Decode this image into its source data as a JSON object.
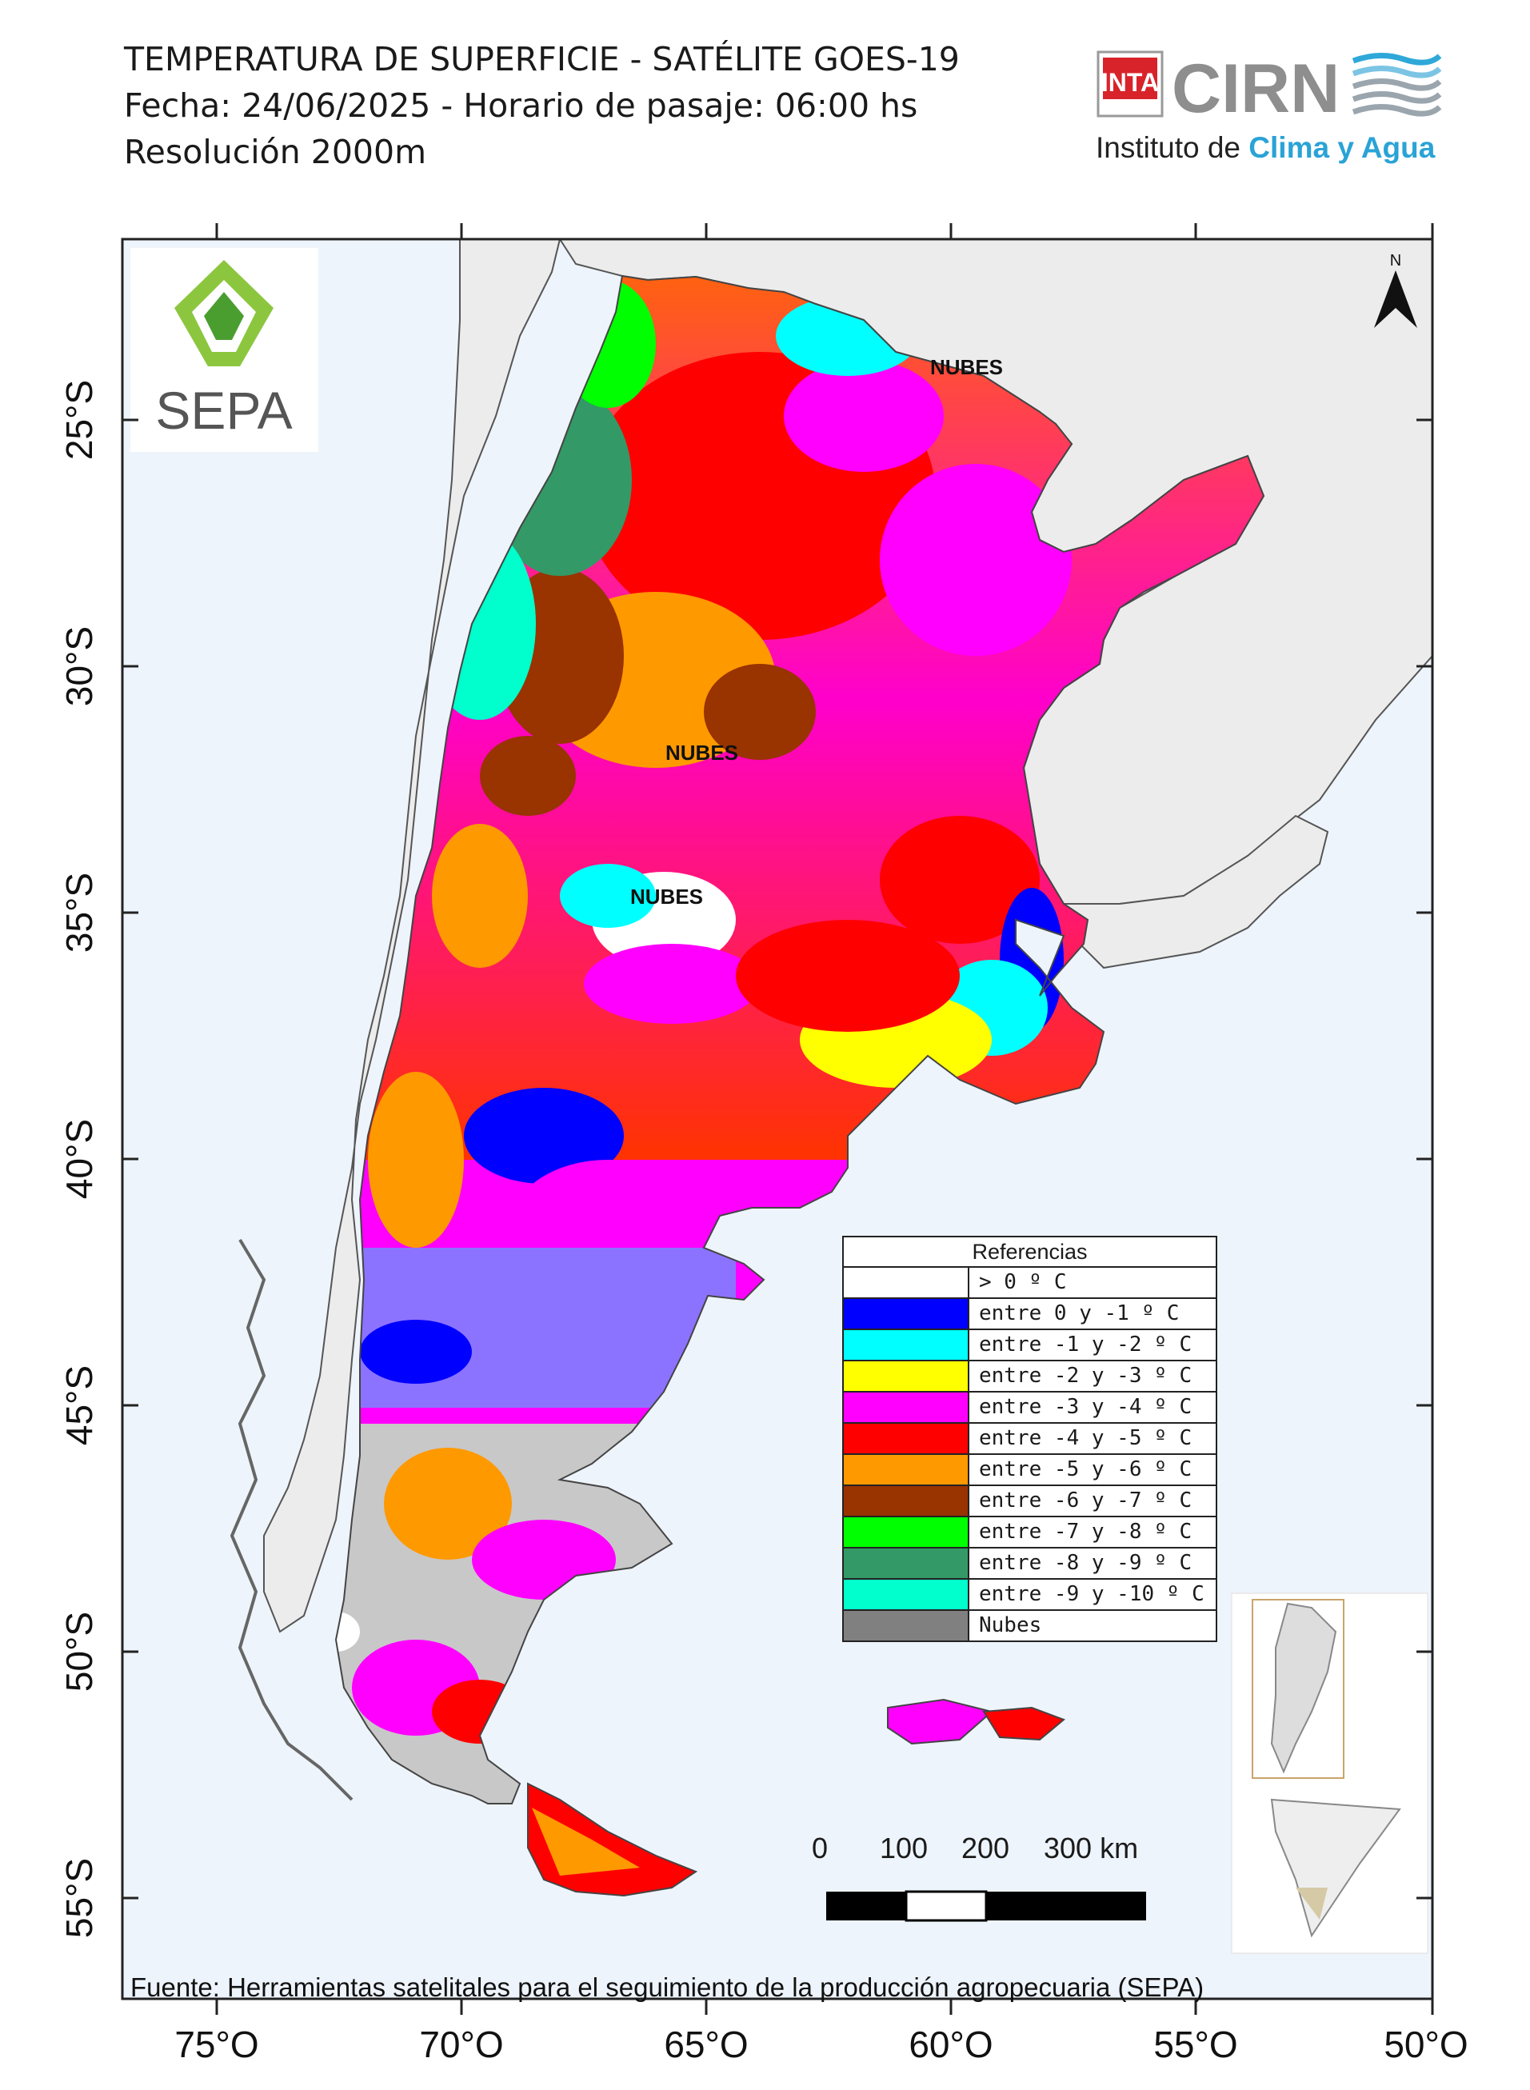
{
  "header": {
    "line1": "TEMPERATURA DE SUPERFICIE - SATÉLITE GOES-19",
    "line2": "Fecha: 24/06/2025 - Horario de pasaje: 06:00 hs",
    "line3": "Resolución 2000m"
  },
  "logos": {
    "inta": "INTA",
    "cirn": "CIRN",
    "instituto_prefix": "Instituto de ",
    "instituto_highlight": "Clima y Agua",
    "sepa": "SEPA"
  },
  "map": {
    "north_label": "N",
    "cloud_labels": [
      "NUBES",
      "NUBES",
      "NUBES"
    ],
    "lat_ticks": [
      "25°S",
      "30°S",
      "35°S",
      "40°S",
      "45°S",
      "50°S",
      "55°S"
    ],
    "lon_ticks": [
      "75°O",
      "70°O",
      "65°O",
      "60°O",
      "55°O",
      "50°O"
    ]
  },
  "legend": {
    "title": "Referencias",
    "items": [
      {
        "label": "> 0 º C",
        "color": "#ffffff"
      },
      {
        "label": "entre  0 y -1 º C",
        "color": "#0000ff"
      },
      {
        "label": "entre -1 y -2 º C",
        "color": "#00ffff"
      },
      {
        "label": "entre -2 y -3 º C",
        "color": "#ffff00"
      },
      {
        "label": "entre -3 y -4 º C",
        "color": "#ff00ff"
      },
      {
        "label": "entre -4 y -5 º C",
        "color": "#ff0000"
      },
      {
        "label": "entre -5 y -6 º C",
        "color": "#ff9900"
      },
      {
        "label": "entre -6 y -7 º C",
        "color": "#993300"
      },
      {
        "label": "entre -7 y -8 º C",
        "color": "#00ff00"
      },
      {
        "label": "entre -8 y -9 º C",
        "color": "#339966"
      },
      {
        "label": "entre -9 y -10 º C",
        "color": "#00ffcc"
      },
      {
        "label": "Nubes",
        "color": "#808080"
      }
    ]
  },
  "scale": {
    "labels": [
      "0",
      "100",
      "200",
      "300 km"
    ]
  },
  "footer": {
    "source": "Fuente: Herramientas satelitales para el seguimiento de la producción agropecuaria (SEPA)"
  }
}
